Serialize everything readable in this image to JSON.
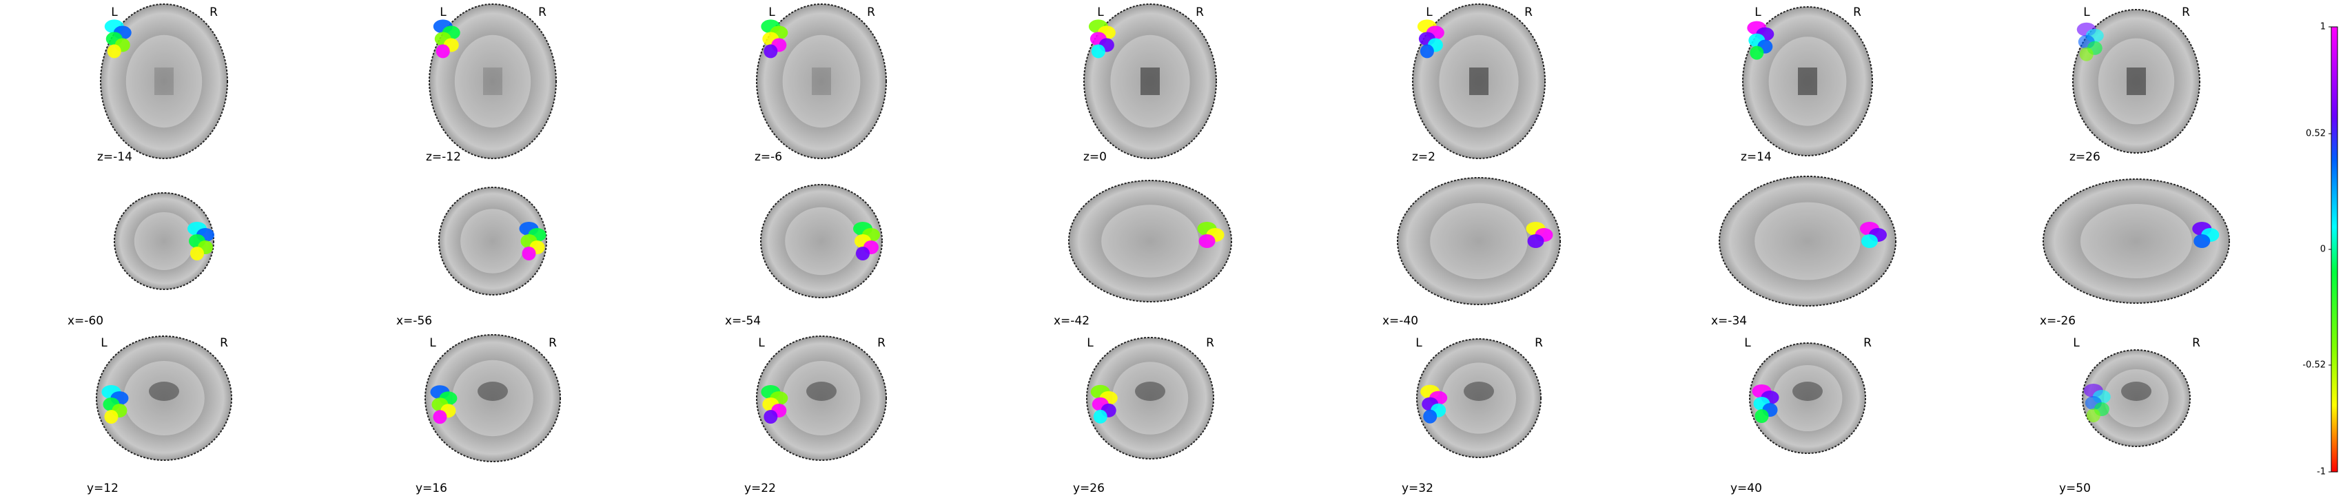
{
  "rows": [
    {
      "view": "axial",
      "slices": [
        "z=-14",
        "z=-12",
        "z=-6",
        "z=0",
        "z=2",
        "z=14",
        "z=26"
      ]
    },
    {
      "view": "sagittal",
      "slices": [
        "x=-60",
        "x=-56",
        "x=-54",
        "x=-42",
        "x=-40",
        "x=-34",
        "x=-26"
      ]
    },
    {
      "view": "coronal",
      "slices": [
        "y=12",
        "y=16",
        "y=22",
        "y=26",
        "y=32",
        "y=40",
        "y=50"
      ]
    }
  ],
  "orientation": {
    "left": "L",
    "right": "R"
  },
  "colorbar": {
    "ylim": [
      -1,
      1
    ],
    "yticks": [
      1,
      0.52,
      0,
      -0.52,
      -1
    ]
  }
}
